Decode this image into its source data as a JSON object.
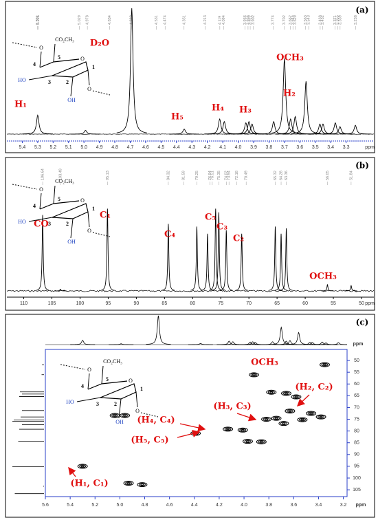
{
  "structure": {
    "labels": [
      "O",
      "CO₂CH₃",
      "4",
      "5",
      "HO",
      "3",
      "2",
      "OH",
      "1",
      "O",
      "O"
    ]
  },
  "panels": [
    {
      "label": "(a)",
      "x_unit": "ppm",
      "xlim": [
        5.5,
        3.12
      ],
      "xticks": [
        5.4,
        5.3,
        5.2,
        5.1,
        {
          "value": 5,
          "label": "5.0"
        },
        4.9,
        4.8,
        4.7,
        4.6,
        4.5,
        4.4,
        4.3,
        4.2,
        4.1,
        {
          "value": 4,
          "label": "4.0"
        },
        3.9,
        3.8,
        3.7,
        3.6,
        3.5,
        3.4,
        3.3
      ],
      "peak_labels": [
        5.301,
        5.296,
        5.029,
        4.978,
        4.834,
        4.693,
        4.531,
        4.474,
        4.351,
        4.213,
        4.119,
        4.094,
        3.956,
        3.936,
        3.922,
        3.902,
        3.774,
        3.702,
        3.662,
        3.645,
        3.629,
        3.563,
        3.543,
        3.468,
        3.452,
        3.371,
        3.355,
        3.339,
        3.238
      ],
      "spectrum": {
        "x": [
          5.3,
          4.99,
          4.69,
          4.35,
          4.12,
          4.09,
          3.95,
          3.93,
          3.91,
          3.77,
          3.7,
          3.66,
          3.63,
          3.56,
          3.47,
          3.45,
          3.37,
          3.34,
          3.24
        ],
        "values": [
          15,
          3,
          100,
          4,
          12,
          10,
          9,
          10,
          8,
          10,
          60,
          12,
          14,
          42,
          8,
          8,
          9,
          6,
          7
        ]
      },
      "annotations": [
        "H₁",
        "D₂O",
        "H₅",
        "H₄",
        "H₃",
        "OCH₃",
        "H₂"
      ]
    },
    {
      "label": "(b)",
      "x_unit": "ppm",
      "xlim": [
        113,
        47.8
      ],
      "xticks": [
        110,
        105,
        100,
        95,
        90,
        85,
        80,
        75,
        70,
        65,
        60,
        55,
        50
      ],
      "peak_labels": [
        106.64,
        103.49,
        95.13,
        84.32,
        81.59,
        79.25,
        76.94,
        76.51,
        75.35,
        74.02,
        73.54,
        72.18,
        70.49,
        65.32,
        64.28,
        63.36,
        56.05,
        51.84
      ],
      "spectrum": {
        "x": [
          106.64,
          103.49,
          95.13,
          84.32,
          79.25,
          77.35,
          75.91,
          75.35,
          74.02,
          71.28,
          65.32,
          64.28,
          63.36,
          56.05,
          51.84
        ],
        "values": [
          85,
          2,
          92,
          75,
          72,
          64,
          92,
          88,
          68,
          64,
          72,
          64,
          70,
          7,
          6
        ]
      },
      "annotations": [
        "CO",
        "C₁",
        "C₄",
        "C₅",
        "C₃",
        "C₂",
        "OCH₃"
      ]
    },
    {
      "label": "(c)",
      "x_unit": "ppm",
      "y_unit": "ppm",
      "xlim": [
        5.6,
        3.17
      ],
      "ylim": [
        45.3,
        107.9
      ],
      "xticks": [
        5.6,
        5.4,
        5.2,
        {
          "value": 5,
          "label": "5.0"
        },
        4.8,
        4.6,
        4.4,
        4.2,
        {
          "value": 4,
          "label": "4.0"
        },
        3.8,
        3.6,
        3.4,
        3.2
      ],
      "yticks": [
        50,
        55,
        60,
        65,
        70,
        75,
        80,
        85,
        90,
        95,
        100,
        105
      ],
      "cross_peaks": {
        "x": [
          5.3,
          4.93,
          4.82,
          5.04,
          4.96,
          4.39,
          4.13,
          4.01,
          3.82,
          3.74,
          3.97,
          3.86,
          3.92,
          3.35,
          3.78,
          3.66,
          3.58,
          3.63,
          3.46,
          3.38,
          3.53,
          3.68
        ],
        "values": [
          95,
          102.2,
          102.8,
          73.4,
          73.4,
          81,
          79.2,
          79.6,
          75,
          74.6,
          84.4,
          84.6,
          56.1,
          51.8,
          63.5,
          64,
          65.5,
          71.5,
          72.5,
          74,
          75.2,
          76.8
        ]
      },
      "annotations": [
        "OCH₃",
        "(H₂, C₂)",
        "(H₃, C₃)",
        "(H₄, C₄)",
        "(H₅, C₅)",
        "(H₁, C₁)"
      ]
    }
  ]
}
